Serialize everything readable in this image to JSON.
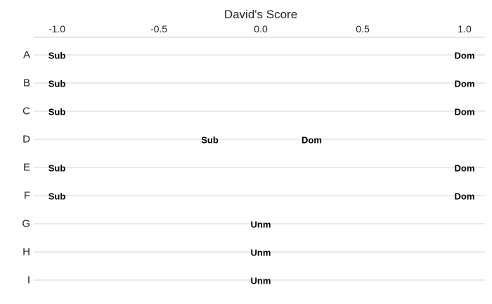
{
  "chart_data": {
    "type": "scatter",
    "xlabel": "David's Score",
    "ylabel": "",
    "xlim": [
      -1.0,
      1.0
    ],
    "x_axis_position": "top",
    "x_ticks": [
      -1.0,
      -0.5,
      0.0,
      0.5,
      1.0
    ],
    "x_tick_labels": [
      "-1.0",
      "-0.5",
      "0.0",
      "0.5",
      "1.0"
    ],
    "categories": [
      "A",
      "B",
      "C",
      "D",
      "E",
      "F",
      "G",
      "H",
      "I"
    ],
    "grid": true,
    "points": [
      {
        "row": "A",
        "x": -1.0,
        "label": "Sub"
      },
      {
        "row": "A",
        "x": 1.0,
        "label": "Dom"
      },
      {
        "row": "B",
        "x": -1.0,
        "label": "Sub"
      },
      {
        "row": "B",
        "x": 1.0,
        "label": "Dom"
      },
      {
        "row": "C",
        "x": -1.0,
        "label": "Sub"
      },
      {
        "row": "C",
        "x": 1.0,
        "label": "Dom"
      },
      {
        "row": "D",
        "x": -0.25,
        "label": "Sub"
      },
      {
        "row": "D",
        "x": 0.25,
        "label": "Dom"
      },
      {
        "row": "E",
        "x": -1.0,
        "label": "Sub"
      },
      {
        "row": "E",
        "x": 1.0,
        "label": "Dom"
      },
      {
        "row": "F",
        "x": -1.0,
        "label": "Sub"
      },
      {
        "row": "F",
        "x": 1.0,
        "label": "Dom"
      },
      {
        "row": "G",
        "x": 0.0,
        "label": "Unm"
      },
      {
        "row": "H",
        "x": 0.0,
        "label": "Unm"
      },
      {
        "row": "I",
        "x": 0.0,
        "label": "Unm"
      }
    ]
  }
}
